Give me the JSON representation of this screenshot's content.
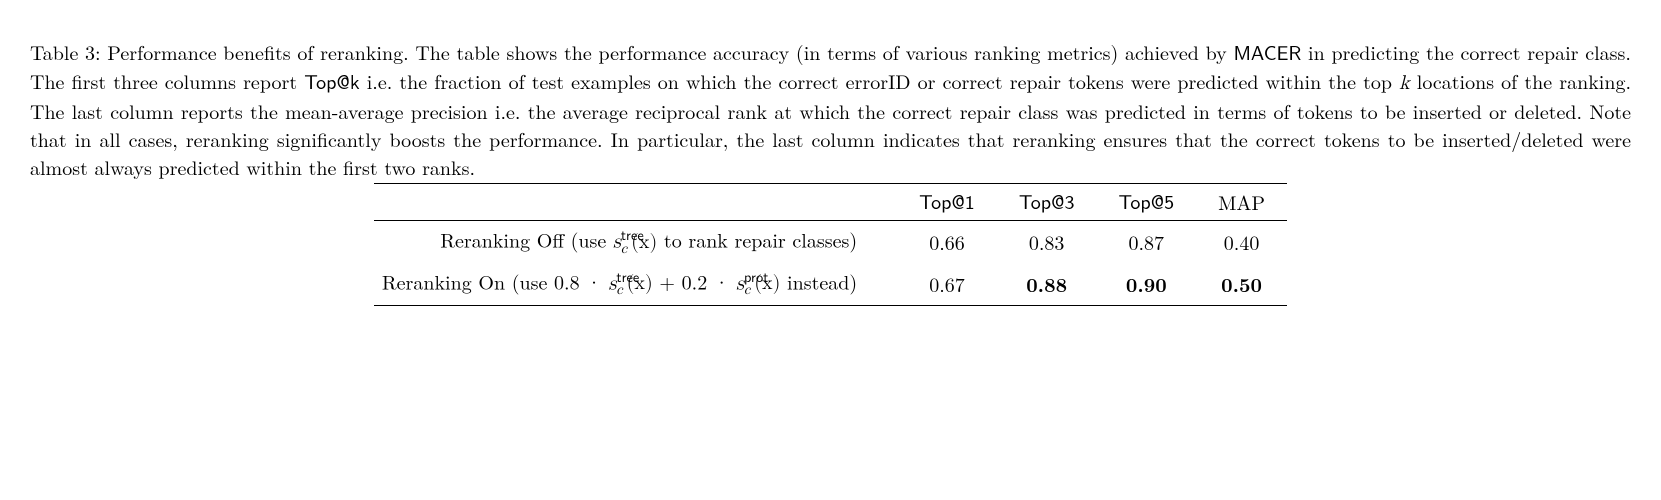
{
  "caption": {
    "prefix": "Table 3: Performance benefits of reranking. The table shows the performance accuracy (in terms of various ranking metrics) achieved by ",
    "macer": "MACER",
    "mid1": " in predicting the correct repair class. The first three columns report ",
    "topk_sf": "Top@k",
    "mid2": " i.e. the fraction of test examples on which the correct errorID or correct repair tokens were predicted within the top ",
    "k_it": "k",
    "mid3": " locations of the ranking. The last column reports the mean-average precision i.e. the average reciprocal rank at which the correct repair class was predicted in terms of tokens to be inserted or deleted. Note that in all cases, reranking significantly boosts the performance. In particular, the last column indicates that reranking ensures that the correct tokens to be inserted/deleted were almost always predicted within the first two ranks."
  },
  "table": {
    "type": "table",
    "headers": [
      "Top@1",
      "Top@3",
      "Top@5",
      "MAP"
    ],
    "rows": [
      {
        "label_parts": {
          "pre": "Reranking Off (use ",
          "s": "s",
          "sup1": "tree",
          "sub1": "c",
          "x": "(x)",
          "post": " to rank repair classes)"
        },
        "values": [
          "0.66",
          "0.83",
          "0.87",
          "0.40"
        ],
        "bold": [
          false,
          false,
          false,
          false
        ]
      },
      {
        "label_parts": {
          "pre": "Reranking On (use 0.8 · ",
          "s": "s",
          "sup1": "tree",
          "sub1": "c",
          "x": "(x)",
          "mid": " + 0.2 · ",
          "s2": "s",
          "sup2": "prot",
          "sub2": "c",
          "x2": "(x)",
          "post": " instead)"
        },
        "values": [
          "0.67",
          "0.88",
          "0.90",
          "0.50"
        ],
        "bold": [
          false,
          true,
          true,
          true
        ]
      }
    ],
    "colors": {
      "text": "#000000",
      "background": "#ffffff",
      "rule": "#000000"
    },
    "font": {
      "caption_size_pt": 20,
      "table_size_pt": 20
    }
  }
}
